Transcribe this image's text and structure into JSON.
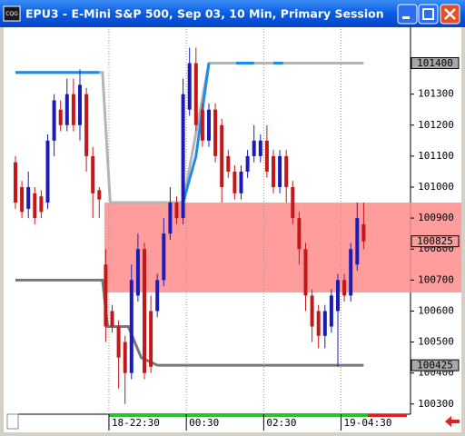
{
  "window": {
    "title": "EPU3 - E-Mini S&P 500, Sep 03, 10 Min, Primary Session",
    "icon": "CQG"
  },
  "chart_data": {
    "type": "candlestick",
    "up_color": "#1c1cb4",
    "down_color": "#c41818",
    "open": [
      101080,
      101000,
      100930,
      100980,
      100970,
      100950,
      101150,
      101250,
      101200,
      101300,
      101200,
      101300,
      101100,
      100990,
      100750,
      100600,
      100550,
      100500,
      100400,
      100650,
      100800,
      100600,
      100600,
      100700,
      100850,
      100950,
      100900,
      101250,
      101400,
      101250,
      101150,
      101250,
      101200,
      101100,
      101050,
      100980,
      101050,
      101100,
      101100,
      101150,
      101100,
      101000,
      101100,
      101000,
      100900,
      100800,
      100650,
      100600,
      100520,
      100550,
      100600,
      100700,
      100650,
      100750,
      100880
    ],
    "high": [
      101100,
      101020,
      101050,
      101000,
      100990,
      101170,
      101300,
      101280,
      101350,
      101350,
      101380,
      101320,
      101130,
      101000,
      100800,
      100620,
      100570,
      100520,
      100750,
      100850,
      100820,
      100650,
      100720,
      100900,
      101000,
      100970,
      101350,
      101450,
      101450,
      101270,
      101270,
      101270,
      101220,
      101120,
      101070,
      101070,
      101120,
      101200,
      101170,
      101200,
      101120,
      101120,
      101120,
      101020,
      100920,
      100820,
      100670,
      100620,
      100620,
      100670,
      100720,
      100720,
      100820,
      100950,
      100950
    ],
    "low": [
      100930,
      100900,
      100900,
      100880,
      100900,
      100930,
      101100,
      101180,
      101180,
      101180,
      101150,
      101050,
      100900,
      100900,
      100500,
      100530,
      100350,
      100300,
      100380,
      100630,
      100380,
      100400,
      100580,
      100680,
      100830,
      100880,
      100880,
      101230,
      101180,
      101130,
      101130,
      101080,
      100950,
      101030,
      100960,
      100960,
      101030,
      101080,
      101080,
      101030,
      100980,
      100980,
      100950,
      100880,
      100750,
      100600,
      100500,
      100480,
      100480,
      100530,
      100420,
      100630,
      100630,
      100730,
      100800
    ],
    "close": [
      100950,
      100920,
      101000,
      100900,
      100920,
      101150,
      101280,
      101200,
      101300,
      101200,
      101330,
      101100,
      100980,
      100960,
      100550,
      100550,
      100450,
      100400,
      100700,
      100800,
      100400,
      100420,
      100700,
      100850,
      100950,
      100900,
      101300,
      101400,
      101200,
      101150,
      101250,
      101100,
      101000,
      101050,
      100980,
      101050,
      101100,
      101150,
      101150,
      101050,
      101000,
      101100,
      101000,
      100900,
      100800,
      100650,
      100550,
      100520,
      100600,
      100650,
      100700,
      100650,
      100800,
      100900,
      100825
    ],
    "lines": [
      {
        "color": "#b4b4b4",
        "x": [
          0,
          13.5,
          14.7,
          26,
          30,
          54
        ],
        "values": [
          101370,
          101370,
          100950,
          100950,
          101400,
          101400
        ]
      },
      {
        "color": "#1e8ce6",
        "x": [
          0,
          13,
          13.5,
          26,
          28,
          30,
          30.5,
          34.2,
          37,
          37.5,
          40,
          41.5
        ],
        "values": [
          101370,
          101370,
          null,
          100950,
          101100,
          101400,
          null,
          101400,
          101400,
          null,
          101400,
          101400
        ]
      },
      {
        "color": "#787878",
        "x": [
          0,
          13.5,
          14.3,
          17.5,
          19.5,
          22,
          54
        ],
        "values": [
          100700,
          100700,
          100550,
          100550,
          100450,
          100425,
          100425
        ]
      }
    ],
    "zone": {
      "x_start": 13.8,
      "values": [
        100660,
        100950
      ],
      "color": "#ff8c8c"
    },
    "ylim": [
      100270,
      101510
    ],
    "yticks": [
      100300,
      100400,
      100500,
      100600,
      100700,
      100800,
      100900,
      101000,
      101100,
      101200,
      101300
    ],
    "markers": [
      {
        "value": 101400,
        "color": "#a8a8a8"
      },
      {
        "value": 100825,
        "color": "#f4a0a0"
      },
      {
        "value": 100425,
        "color": "#a8a8a8"
      }
    ],
    "xticks": [
      {
        "value": 14.5,
        "label": "18-22:30"
      },
      {
        "value": 26.5,
        "label": "00:30"
      },
      {
        "value": 38.5,
        "label": "02:30"
      },
      {
        "value": 50.5,
        "label": "19-04:30"
      }
    ]
  }
}
